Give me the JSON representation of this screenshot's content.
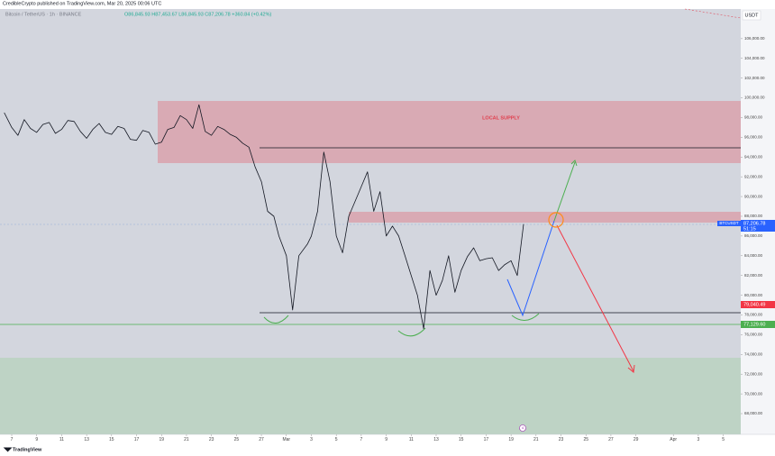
{
  "header": {
    "publisher": "CredibleCrypto published on TradingView.com, Mar 20, 2025 00:06 UTC",
    "symbol_info": "Bitcoin / TetherUS · 1h · BINANCE",
    "ohlc": "O86,845.93 H87,453.67 L86,845.93 C87,206.78 +360.84 (+0.42%)"
  },
  "chart_data": {
    "type": "line",
    "x": [
      -0.6,
      0,
      0.5,
      1,
      1.5,
      2,
      2.5,
      3,
      3.5,
      4,
      4.5,
      5,
      5.5,
      6,
      6.5,
      7,
      7.5,
      8,
      8.5,
      9,
      9.5,
      10,
      10.5,
      11,
      11.5,
      12,
      12.5,
      13,
      13.5,
      14,
      14.5,
      15,
      15.5,
      16,
      16.5,
      17,
      17.5,
      18,
      18.5,
      19,
      19.5,
      20,
      20.5,
      21,
      21.4,
      22,
      22.5,
      23,
      23.7,
      24,
      24.5,
      25,
      25.5,
      26,
      26.5,
      27,
      27.5,
      28,
      28.5,
      29,
      29.5,
      30,
      30.5,
      31,
      31.5,
      32,
      32.5,
      33,
      33.5,
      34,
      34.5,
      35,
      35.5,
      36,
      36.5,
      37,
      37.5,
      38,
      38.5,
      39,
      39.5,
      40,
      40.5,
      41
    ],
    "series": [
      {
        "name": "BTCUSDT",
        "color": "#131722",
        "values": [
          98500,
          97000,
          96200,
          97800,
          96900,
          96500,
          97300,
          97500,
          96400,
          96800,
          97700,
          97600,
          96600,
          95900,
          96800,
          97400,
          96500,
          96300,
          97100,
          96900,
          95800,
          95700,
          96700,
          96500,
          95300,
          95500,
          96800,
          97000,
          98200,
          97800,
          96900,
          99300,
          96600,
          96200,
          97100,
          96800,
          96300,
          96000,
          95400,
          95000,
          93000,
          91500,
          88500,
          88000,
          86000,
          84000,
          78500,
          84000,
          85200,
          86000,
          88500,
          94500,
          91500,
          86000,
          84300,
          88000,
          89500,
          91000,
          92500,
          88500,
          90500,
          86000,
          87000,
          86000,
          84000,
          82000,
          80000,
          76600,
          82500,
          80000,
          81500,
          84000,
          80300,
          82500,
          83900,
          84800,
          83500,
          83700,
          83800,
          82500,
          83100,
          83500,
          82000,
          87200
        ]
      }
    ],
    "xlim": [
      -0.65,
      58.4
    ],
    "xticks": [
      {
        "value": 0,
        "label": "7"
      },
      {
        "value": 2,
        "label": "9"
      },
      {
        "value": 4,
        "label": "11"
      },
      {
        "value": 6,
        "label": "13"
      },
      {
        "value": 8,
        "label": "15"
      },
      {
        "value": 10,
        "label": "17"
      },
      {
        "value": 12,
        "label": "19"
      },
      {
        "value": 14,
        "label": "21"
      },
      {
        "value": 16,
        "label": "23"
      },
      {
        "value": 18,
        "label": "25"
      },
      {
        "value": 20,
        "label": "27"
      },
      {
        "value": 22,
        "label": "Mar"
      },
      {
        "value": 24,
        "label": "3"
      },
      {
        "value": 26,
        "label": "5"
      },
      {
        "value": 28,
        "label": "7"
      },
      {
        "value": 30,
        "label": "9"
      },
      {
        "value": 32,
        "label": "11"
      },
      {
        "value": 34,
        "label": "13"
      },
      {
        "value": 36,
        "label": "15"
      },
      {
        "value": 38,
        "label": "17"
      },
      {
        "value": 40,
        "label": "19"
      },
      {
        "value": 42,
        "label": "21"
      },
      {
        "value": 44,
        "label": "23"
      },
      {
        "value": 46,
        "label": "25"
      },
      {
        "value": 48,
        "label": "27"
      },
      {
        "value": 50,
        "label": "29"
      },
      {
        "value": 53,
        "label": "Apr"
      },
      {
        "value": 55,
        "label": "3"
      },
      {
        "value": 57,
        "label": "5"
      }
    ],
    "ylim": [
      65900,
      109000
    ],
    "yticks": [
      {
        "value": 68000,
        "label": "68,000.00"
      },
      {
        "value": 70000,
        "label": "70,000.00"
      },
      {
        "value": 72000,
        "label": "72,000.00"
      },
      {
        "value": 74000,
        "label": "74,000.00"
      },
      {
        "value": 76000,
        "label": "76,000.00"
      },
      {
        "value": 78000,
        "label": "78,000.00"
      },
      {
        "value": 80000,
        "label": "80,000.00"
      },
      {
        "value": 82000,
        "label": "82,000.00"
      },
      {
        "value": 84000,
        "label": "84,000.00"
      },
      {
        "value": 86000,
        "label": "86,000.00"
      },
      {
        "value": 88000,
        "label": "88,000.00"
      },
      {
        "value": 90000,
        "label": "90,000.00"
      },
      {
        "value": 92000,
        "label": "92,000.00"
      },
      {
        "value": 94000,
        "label": "94,000.00"
      },
      {
        "value": 96000,
        "label": "96,000.00"
      },
      {
        "value": 98000,
        "label": "98,000.00"
      },
      {
        "value": 100000,
        "label": "100,000.00"
      },
      {
        "value": 102000,
        "label": "102,000.00"
      },
      {
        "value": 104000,
        "label": "104,000.00"
      },
      {
        "value": 106000,
        "label": "106,000.00"
      }
    ],
    "grid": false
  },
  "price_scale": {
    "currency": "USDT",
    "last_price": "87,206.78",
    "countdown": "51:15",
    "level_red": "79,040.49",
    "level_green": "77,129.60"
  },
  "drawings": {
    "supply_label": "LOCAL SUPPLY"
  },
  "event_badge": "4",
  "footer": {
    "brand": "TradingView"
  }
}
